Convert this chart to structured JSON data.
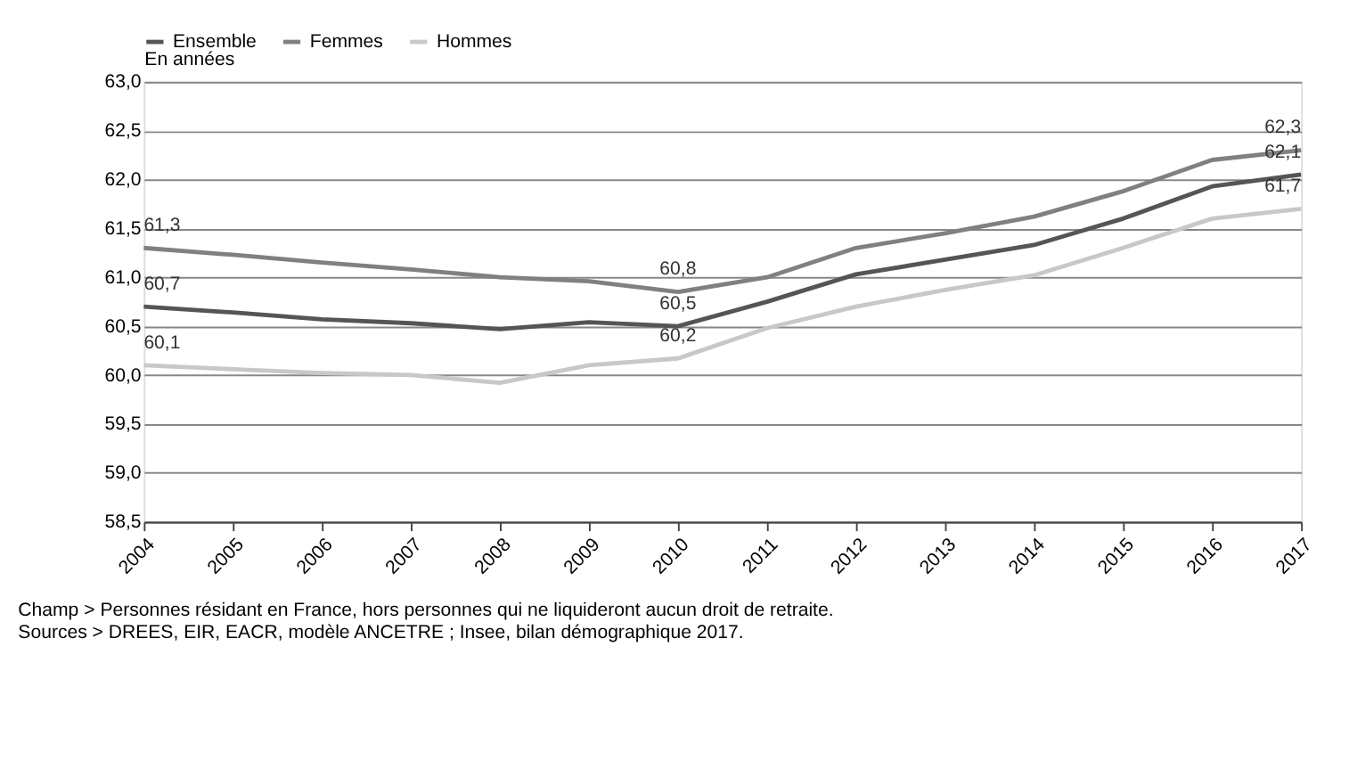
{
  "chart_data": {
    "type": "line",
    "categories": [
      "2004",
      "2005",
      "2006",
      "2007",
      "2008",
      "2009",
      "2010",
      "2011",
      "2012",
      "2013",
      "2014",
      "2015",
      "2016",
      "2017"
    ],
    "series": [
      {
        "name": "Ensemble",
        "color": "#555555",
        "values": [
          60.7,
          60.64,
          60.57,
          60.53,
          60.47,
          60.54,
          60.5,
          60.75,
          61.03,
          61.18,
          61.33,
          61.6,
          61.93,
          62.05
        ],
        "value_labels": [
          "60,7",
          null,
          null,
          null,
          null,
          null,
          "60,5",
          null,
          null,
          null,
          null,
          null,
          null,
          "62,1"
        ]
      },
      {
        "name": "Femmes",
        "color": "#808080",
        "values": [
          61.3,
          61.23,
          61.15,
          61.08,
          61.0,
          60.96,
          60.85,
          61.0,
          61.3,
          61.45,
          61.62,
          61.88,
          62.2,
          62.3
        ],
        "value_labels": [
          "61,3",
          null,
          null,
          null,
          null,
          null,
          "60,8",
          null,
          null,
          null,
          null,
          null,
          null,
          "62,3"
        ]
      },
      {
        "name": "Hommes",
        "color": "#c8c8c8",
        "values": [
          60.1,
          60.06,
          60.02,
          60.0,
          59.92,
          60.1,
          60.17,
          60.48,
          60.7,
          60.87,
          61.02,
          61.3,
          61.6,
          61.7
        ],
        "value_labels": [
          "60,1",
          null,
          null,
          null,
          null,
          null,
          "60,2",
          null,
          null,
          null,
          null,
          null,
          null,
          "61,7"
        ]
      }
    ],
    "ylabel": "En années",
    "ylim": [
      58.5,
      63.0
    ],
    "yticks": [
      {
        "value": 58.5,
        "label": "58,5"
      },
      {
        "value": 59.0,
        "label": "59,0"
      },
      {
        "value": 59.5,
        "label": "59,5"
      },
      {
        "value": 60.0,
        "label": "60,0"
      },
      {
        "value": 60.5,
        "label": "60,5"
      },
      {
        "value": 61.0,
        "label": "61,0"
      },
      {
        "value": 61.5,
        "label": "61,5"
      },
      {
        "value": 62.0,
        "label": "62,0"
      },
      {
        "value": 62.5,
        "label": "62,5"
      },
      {
        "value": 63.0,
        "label": "63,0"
      }
    ],
    "grid": "y",
    "legend": "top",
    "marker": "none",
    "line_style": "solid",
    "annotations": [
      "Champ > Personnes résidant en France, hors personnes qui ne liquideront aucun droit de retraite.",
      "Sources > DREES, EIR, EACR, modèle ANCETRE ; Insee, bilan démographique 2017."
    ]
  }
}
